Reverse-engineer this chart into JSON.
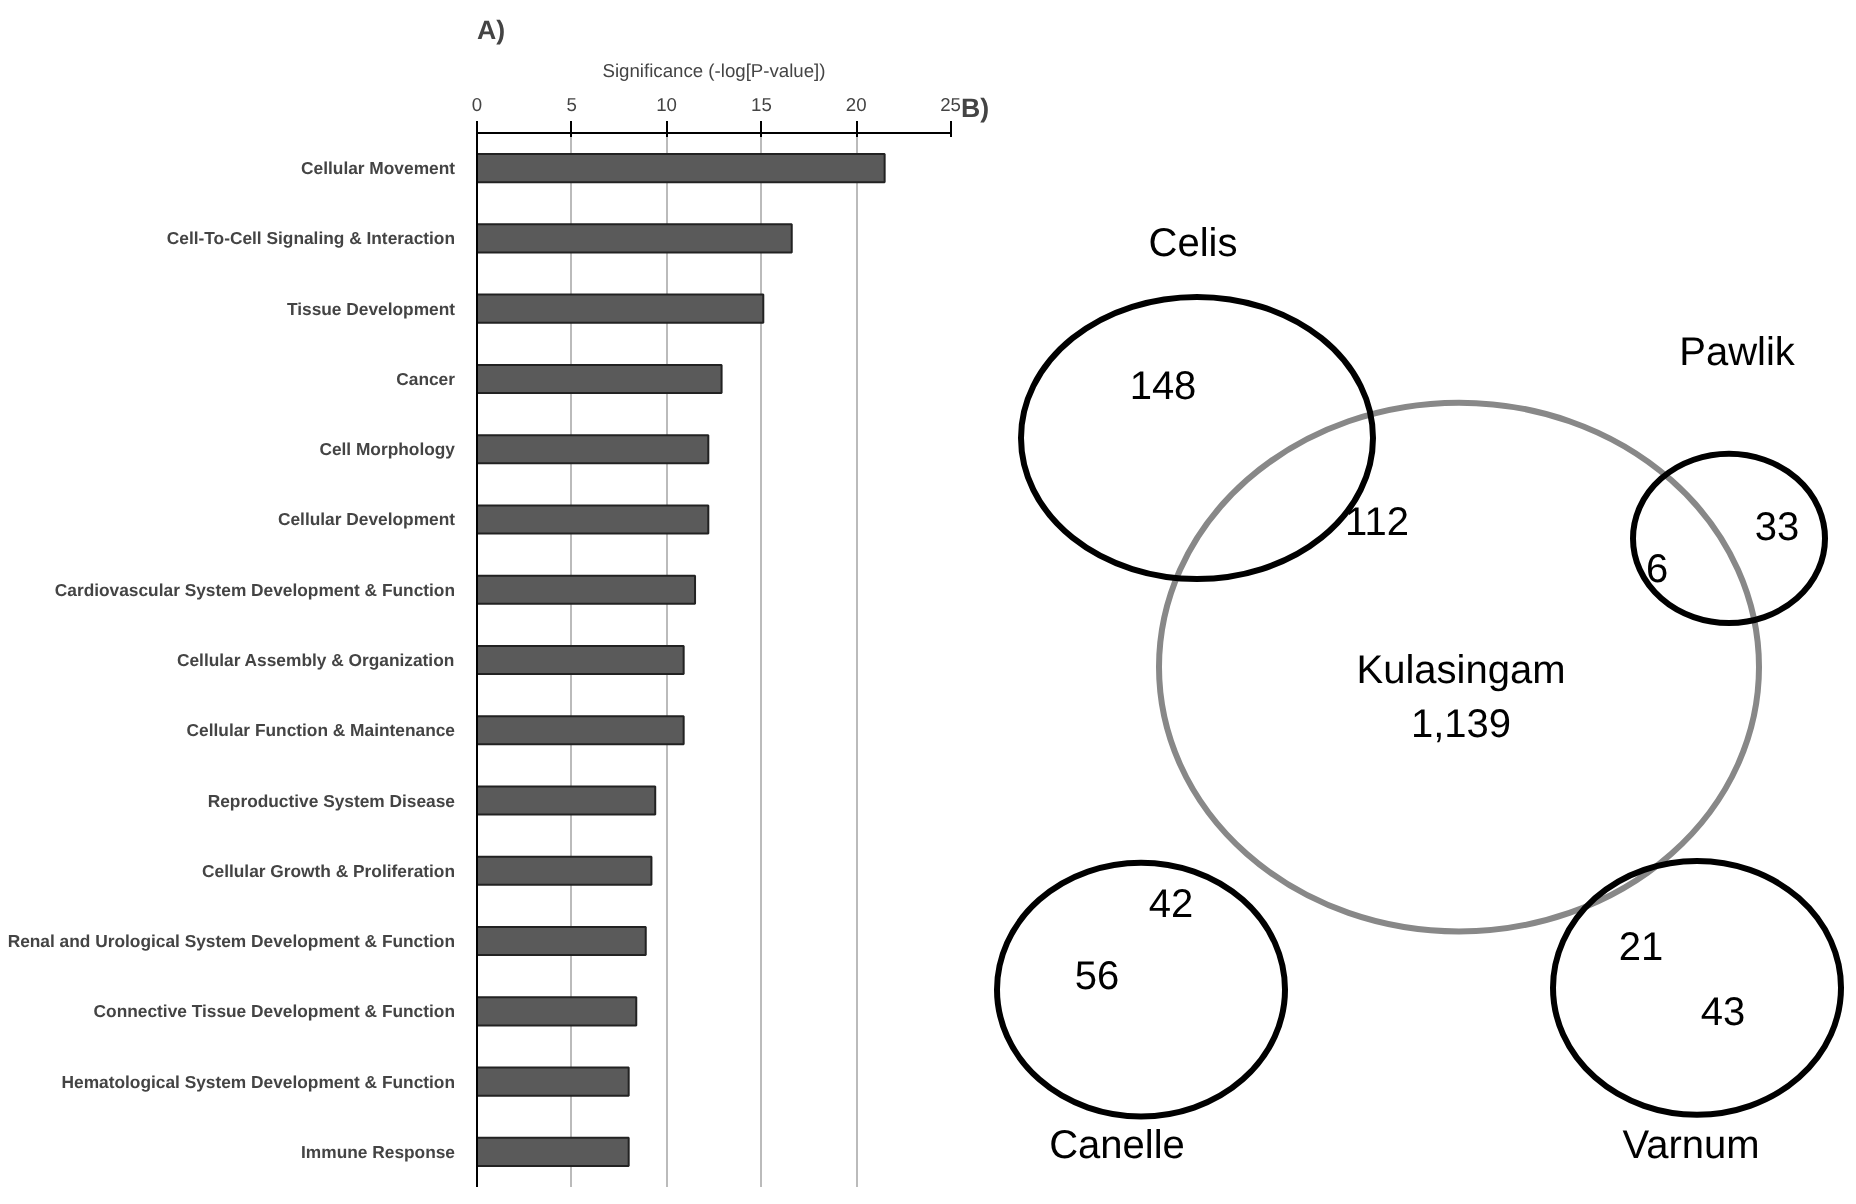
{
  "chart_data": [
    {
      "type": "bar",
      "orientation": "horizontal",
      "title": "A)",
      "xlabel": "Significance (-log[P-value])",
      "categories": [
        "Cellular Movement",
        "Cell-To-Cell Signaling & Interaction",
        "Tissue Development",
        "Cancer",
        "Cell Morphology",
        "Cellular Development",
        "Cardiovascular System Development & Function",
        "Cellular Assembly & Organization",
        "Cellular Function & Maintenance",
        "Reproductive System Disease",
        "Cellular Growth & Proliferation",
        "Renal and Urological System Development & Function",
        "Connective Tissue Development & Function",
        "Hematological System Development & Function",
        "Immune Response"
      ],
      "values": [
        21.5,
        16.6,
        15.1,
        12.9,
        12.2,
        12.2,
        11.5,
        10.9,
        10.9,
        9.4,
        9.2,
        8.9,
        8.4,
        8.0,
        8.0
      ],
      "color": "#5a5a5a",
      "xlim": [
        0,
        25
      ],
      "xticks": [
        0,
        5,
        10,
        15,
        20,
        25
      ],
      "grid": "x"
    },
    {
      "type": "other",
      "title": "B)",
      "annotations": [
        "Celis",
        "148",
        "112",
        "Pawlik",
        "6",
        "33",
        "Kulasingam",
        "1,139",
        "42",
        "56",
        "21",
        "43",
        "Canelle",
        "Varnum"
      ]
    }
  ]
}
